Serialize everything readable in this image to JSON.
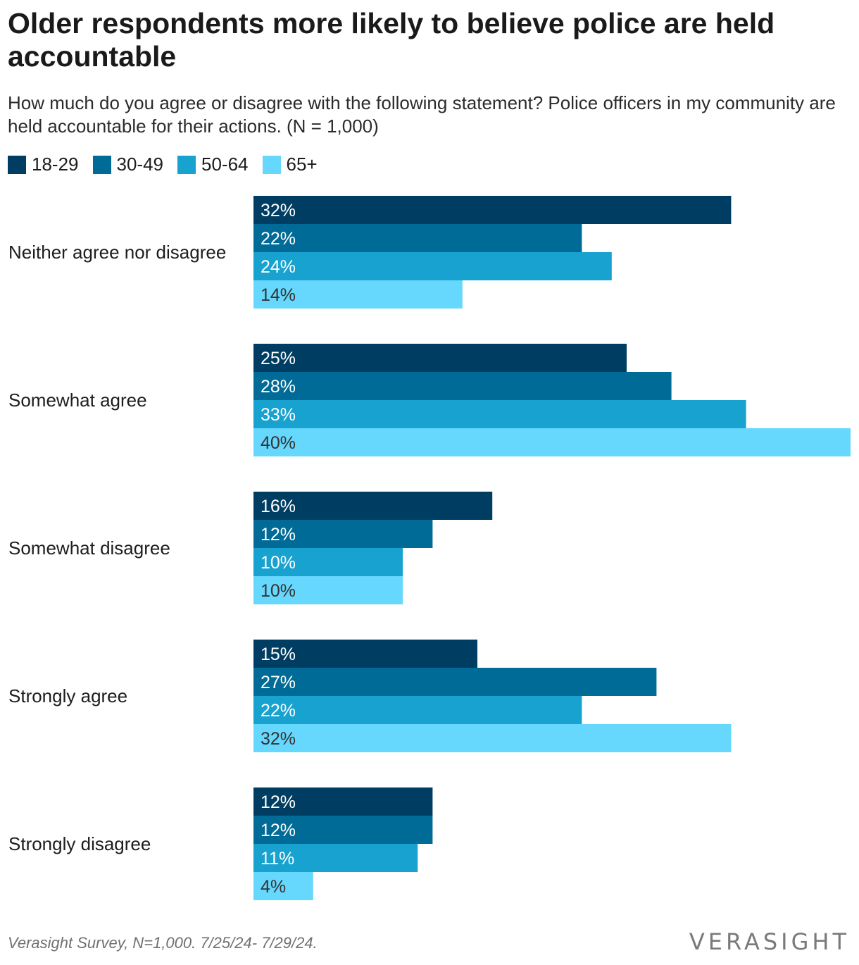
{
  "title": "Older respondents more likely to believe police are held accountable",
  "subtitle": "How much do you agree or disagree with the following statement? Police officers in my community are held accountable for their actions. (N = 1,000)",
  "source": "Verasight Survey, N=1,000. 7/25/24- 7/29/24.",
  "logo": "VERASIGHT",
  "colors": {
    "18-29": "#003d62",
    "30-49": "#006b96",
    "50-64": "#18a2d0",
    "65+": "#66d7fd"
  },
  "chart_data": {
    "type": "bar",
    "orientation": "horizontal",
    "categories": [
      "Neither agree nor disagree",
      "Somewhat agree",
      "Somewhat disagree",
      "Strongly agree",
      "Strongly disagree"
    ],
    "series": [
      {
        "name": "18-29",
        "values": [
          32,
          25,
          16,
          15,
          12
        ],
        "color": "#003d62",
        "label_color": "#ffffff"
      },
      {
        "name": "30-49",
        "values": [
          22,
          28,
          12,
          27,
          12
        ],
        "color": "#006b96",
        "label_color": "#ffffff"
      },
      {
        "name": "50-64",
        "values": [
          24,
          33,
          10,
          22,
          11
        ],
        "color": "#18a2d0",
        "label_color": "#ffffff"
      },
      {
        "name": "65+",
        "values": [
          14,
          40,
          10,
          32,
          4
        ],
        "color": "#66d7fd",
        "label_color": "#333333"
      }
    ],
    "value_suffix": "%",
    "xlim": [
      0,
      40
    ],
    "grid": false,
    "legend_position": "top-left"
  }
}
